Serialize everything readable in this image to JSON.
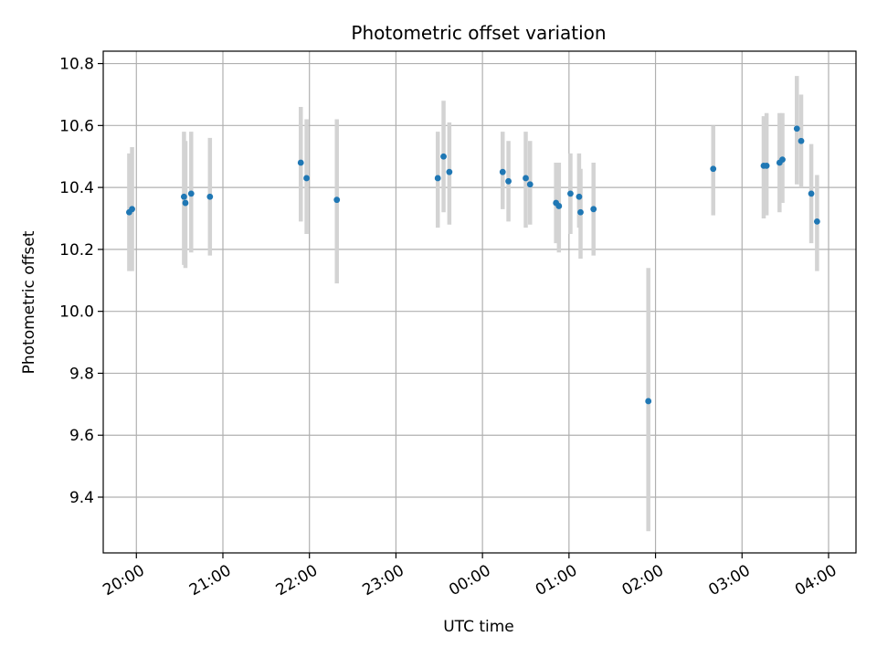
{
  "chart_data": {
    "type": "scatter",
    "title": "Photometric offset variation",
    "xlabel": "UTC time",
    "ylabel": "Photometric offset",
    "x_axis": {
      "kind": "time",
      "range": [
        "19:37",
        "04:19"
      ],
      "ticks": [
        "19:59:59",
        "20:59:59",
        "21:59:59",
        "22:59:59",
        "23:59:59",
        "00:59:59",
        "01:59:59",
        "02:59:59",
        "03:59:59"
      ],
      "tick_labels": [
        "20:00",
        "21:00",
        "22:00",
        "23:00",
        "00:00",
        "01:00",
        "02:00",
        "03:00",
        "04:00"
      ]
    },
    "y_axis": {
      "range": [
        9.22,
        10.84
      ],
      "ticks": [
        9.4,
        9.6,
        9.8,
        10.0,
        10.2,
        10.4,
        10.6,
        10.8
      ],
      "tick_labels": [
        "9.4",
        "9.6",
        "9.8",
        "10.0",
        "10.2",
        "10.4",
        "10.6",
        "10.8"
      ]
    },
    "grid": true,
    "colors": {
      "points": "#1f77b4",
      "error_bars": "#d3d3d3"
    },
    "points": [
      {
        "t": "19:55",
        "y": 10.32,
        "lo": 10.13,
        "hi": 10.51
      },
      {
        "t": "19:57",
        "y": 10.33,
        "lo": 10.13,
        "hi": 10.53
      },
      {
        "t": "20:33",
        "y": 10.37,
        "lo": 10.15,
        "hi": 10.58
      },
      {
        "t": "20:34",
        "y": 10.35,
        "lo": 10.14,
        "hi": 10.55
      },
      {
        "t": "20:38",
        "y": 10.38,
        "lo": 10.19,
        "hi": 10.58
      },
      {
        "t": "20:51",
        "y": 10.37,
        "lo": 10.18,
        "hi": 10.56
      },
      {
        "t": "21:54",
        "y": 10.48,
        "lo": 10.29,
        "hi": 10.66
      },
      {
        "t": "21:58",
        "y": 10.43,
        "lo": 10.25,
        "hi": 10.62
      },
      {
        "t": "22:19",
        "y": 10.36,
        "lo": 10.09,
        "hi": 10.62
      },
      {
        "t": "23:29",
        "y": 10.43,
        "lo": 10.27,
        "hi": 10.58
      },
      {
        "t": "23:33",
        "y": 10.5,
        "lo": 10.32,
        "hi": 10.68
      },
      {
        "t": "23:37",
        "y": 10.45,
        "lo": 10.28,
        "hi": 10.61
      },
      {
        "t": "00:14",
        "y": 10.45,
        "lo": 10.33,
        "hi": 10.58
      },
      {
        "t": "00:18",
        "y": 10.42,
        "lo": 10.29,
        "hi": 10.55
      },
      {
        "t": "00:30",
        "y": 10.43,
        "lo": 10.27,
        "hi": 10.58
      },
      {
        "t": "00:33",
        "y": 10.41,
        "lo": 10.28,
        "hi": 10.55
      },
      {
        "t": "00:51",
        "y": 10.35,
        "lo": 10.22,
        "hi": 10.48
      },
      {
        "t": "00:53",
        "y": 10.34,
        "lo": 10.19,
        "hi": 10.48
      },
      {
        "t": "01:01",
        "y": 10.38,
        "lo": 10.25,
        "hi": 10.51
      },
      {
        "t": "01:07",
        "y": 10.37,
        "lo": 10.27,
        "hi": 10.51
      },
      {
        "t": "01:08",
        "y": 10.32,
        "lo": 10.17,
        "hi": 10.46
      },
      {
        "t": "01:17",
        "y": 10.33,
        "lo": 10.18,
        "hi": 10.48
      },
      {
        "t": "01:55",
        "y": 9.71,
        "lo": 9.29,
        "hi": 10.14
      },
      {
        "t": "02:40",
        "y": 10.46,
        "lo": 10.31,
        "hi": 10.6
      },
      {
        "t": "03:15",
        "y": 10.47,
        "lo": 10.3,
        "hi": 10.63
      },
      {
        "t": "03:17",
        "y": 10.47,
        "lo": 10.31,
        "hi": 10.64
      },
      {
        "t": "03:26",
        "y": 10.48,
        "lo": 10.32,
        "hi": 10.64
      },
      {
        "t": "03:28",
        "y": 10.49,
        "lo": 10.35,
        "hi": 10.64
      },
      {
        "t": "03:38",
        "y": 10.59,
        "lo": 10.41,
        "hi": 10.76
      },
      {
        "t": "03:41",
        "y": 10.55,
        "lo": 10.4,
        "hi": 10.7
      },
      {
        "t": "03:48",
        "y": 10.38,
        "lo": 10.22,
        "hi": 10.54
      },
      {
        "t": "03:52",
        "y": 10.29,
        "lo": 10.13,
        "hi": 10.44
      }
    ]
  }
}
